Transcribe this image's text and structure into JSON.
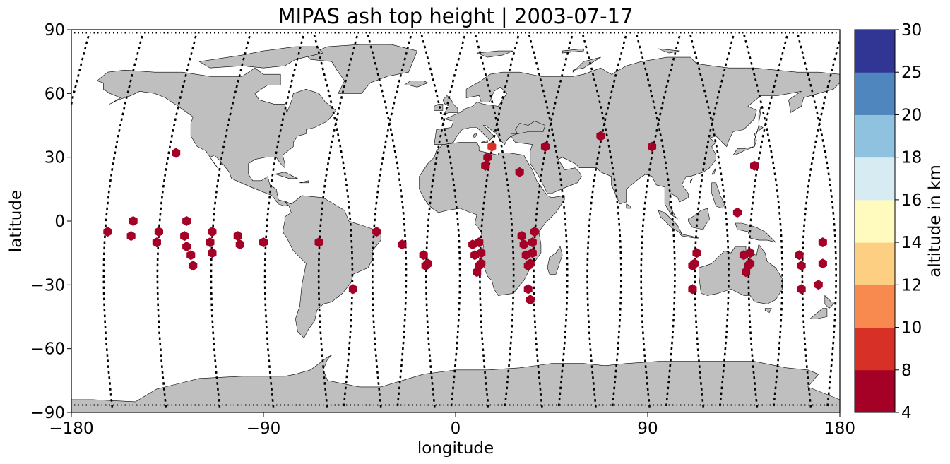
{
  "chart_data": {
    "type": "scatter",
    "title": "MIPAS ash top height | 2003-07-17",
    "xlabel": "longitude",
    "ylabel": "latitude",
    "xlim": [
      -180,
      180
    ],
    "ylim": [
      -90,
      90
    ],
    "xticks": [
      -180,
      -90,
      0,
      90,
      180
    ],
    "yticks": [
      -90,
      -60,
      -30,
      0,
      30,
      60,
      90
    ],
    "xtick_labels": [
      "−180",
      "−90",
      "0",
      "90",
      "180"
    ],
    "ytick_labels": [
      "−90",
      "−60",
      "−30",
      "0",
      "30",
      "60",
      "90"
    ],
    "background_map": "world coastlines, land filled light gray",
    "land_color": "#bfbfbf",
    "track_color": "#000000",
    "marker": "hexagon",
    "colorbar": {
      "label": "altitude in km",
      "boundaries": [
        4,
        8,
        10,
        12,
        14,
        16,
        18,
        20,
        25,
        30
      ],
      "tick_labels": [
        "4",
        "8",
        "10",
        "12",
        "14",
        "16",
        "18",
        "20",
        "25",
        "30"
      ],
      "colors": [
        "#a50026",
        "#d73027",
        "#f46d43",
        "#fdae61",
        "#fee090",
        "#ffffbf",
        "#e0f3f8",
        "#abd9e9",
        "#74add1",
        "#4575b4",
        "#313695"
      ],
      "bin_colors": [
        "#a50026",
        "#d73027",
        "#f88a4f",
        "#fdcf82",
        "#fffbbe",
        "#d6ebf2",
        "#8fc2de",
        "#4f86bd",
        "#313695"
      ]
    },
    "points": [
      {
        "lon": -163,
        "lat": -5,
        "alt": 6
      },
      {
        "lon": -152,
        "lat": -7,
        "alt": 6
      },
      {
        "lon": -151,
        "lat": 0,
        "alt": 6
      },
      {
        "lon": -140,
        "lat": -10,
        "alt": 6
      },
      {
        "lon": -139,
        "lat": -5,
        "alt": 6
      },
      {
        "lon": -131,
        "lat": 32,
        "alt": 6
      },
      {
        "lon": -127,
        "lat": -7,
        "alt": 6
      },
      {
        "lon": -126,
        "lat": 0,
        "alt": 6
      },
      {
        "lon": -126,
        "lat": -12,
        "alt": 6
      },
      {
        "lon": -124,
        "lat": -16,
        "alt": 6
      },
      {
        "lon": -123,
        "lat": -21,
        "alt": 6
      },
      {
        "lon": -115,
        "lat": -10,
        "alt": 6
      },
      {
        "lon": -114,
        "lat": -5,
        "alt": 6
      },
      {
        "lon": -114,
        "lat": -15,
        "alt": 6
      },
      {
        "lon": -102,
        "lat": -7,
        "alt": 6
      },
      {
        "lon": -101,
        "lat": -11,
        "alt": 6
      },
      {
        "lon": -90,
        "lat": -10,
        "alt": 6
      },
      {
        "lon": -64,
        "lat": -10,
        "alt": 6
      },
      {
        "lon": -48,
        "lat": -32,
        "alt": 6
      },
      {
        "lon": -37,
        "lat": -5,
        "alt": 6
      },
      {
        "lon": -25,
        "lat": -11,
        "alt": 6
      },
      {
        "lon": -15,
        "lat": -16,
        "alt": 6
      },
      {
        "lon": -14,
        "lat": -21,
        "alt": 6
      },
      {
        "lon": -13,
        "lat": -20,
        "alt": 6
      },
      {
        "lon": 8,
        "lat": -11,
        "alt": 6
      },
      {
        "lon": 9,
        "lat": -16,
        "alt": 6
      },
      {
        "lon": 10,
        "lat": -24,
        "alt": 6
      },
      {
        "lon": 11,
        "lat": -21,
        "alt": 6
      },
      {
        "lon": 11,
        "lat": -10,
        "alt": 6
      },
      {
        "lon": 12,
        "lat": -20,
        "alt": 6
      },
      {
        "lon": 12,
        "lat": -15,
        "alt": 6
      },
      {
        "lon": 14,
        "lat": 26,
        "alt": 6
      },
      {
        "lon": 15,
        "lat": 30,
        "alt": 6
      },
      {
        "lon": 17,
        "lat": 35,
        "alt": 9
      },
      {
        "lon": 30,
        "lat": 23,
        "alt": 6
      },
      {
        "lon": 31,
        "lat": -7,
        "alt": 6
      },
      {
        "lon": 32,
        "lat": -11,
        "alt": 6
      },
      {
        "lon": 33,
        "lat": -16,
        "alt": 6
      },
      {
        "lon": 34,
        "lat": -21,
        "alt": 6
      },
      {
        "lon": 34,
        "lat": -32,
        "alt": 6
      },
      {
        "lon": 35,
        "lat": -37,
        "alt": 6
      },
      {
        "lon": 35,
        "lat": -20,
        "alt": 6
      },
      {
        "lon": 36,
        "lat": -10,
        "alt": 6
      },
      {
        "lon": 36,
        "lat": -15,
        "alt": 6
      },
      {
        "lon": 37,
        "lat": -5,
        "alt": 6
      },
      {
        "lon": 42,
        "lat": 35,
        "alt": 6
      },
      {
        "lon": 68,
        "lat": 40,
        "alt": 6
      },
      {
        "lon": 92,
        "lat": 35,
        "alt": 6
      },
      {
        "lon": 111,
        "lat": -32,
        "alt": 6
      },
      {
        "lon": 111,
        "lat": -21,
        "alt": 6
      },
      {
        "lon": 112,
        "lat": -20,
        "alt": 6
      },
      {
        "lon": 113,
        "lat": -15,
        "alt": 6
      },
      {
        "lon": 132,
        "lat": 4,
        "alt": 6
      },
      {
        "lon": 135,
        "lat": -16,
        "alt": 6
      },
      {
        "lon": 136,
        "lat": -24,
        "alt": 6
      },
      {
        "lon": 137,
        "lat": -21,
        "alt": 6
      },
      {
        "lon": 138,
        "lat": -20,
        "alt": 6
      },
      {
        "lon": 138,
        "lat": -15,
        "alt": 6
      },
      {
        "lon": 140,
        "lat": 26,
        "alt": 6
      },
      {
        "lon": 161,
        "lat": -16,
        "alt": 6
      },
      {
        "lon": 162,
        "lat": -21,
        "alt": 6
      },
      {
        "lon": 162,
        "lat": -32,
        "alt": 6
      },
      {
        "lon": 170,
        "lat": -30,
        "alt": 6
      },
      {
        "lon": 172,
        "lat": -20,
        "alt": 6
      },
      {
        "lon": 172,
        "lat": -10,
        "alt": 6
      }
    ]
  }
}
